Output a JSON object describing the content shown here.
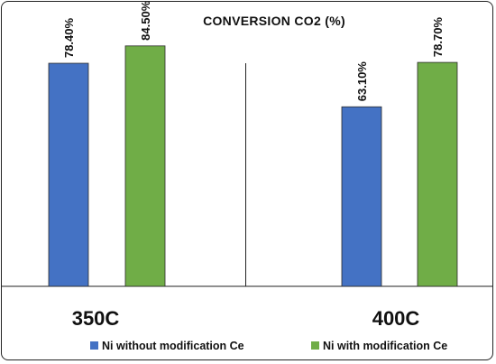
{
  "chart_data": {
    "type": "bar",
    "title": "CONVERSION  CO2 (%)",
    "categories": [
      "350C",
      "400C"
    ],
    "series": [
      {
        "name": "Ni without modification Ce",
        "color": "#4472C4",
        "values": [
          78.4,
          63.1
        ],
        "labels": [
          "78.40%",
          "63.10%"
        ]
      },
      {
        "name": "Ni with modification Ce",
        "color": "#70AD47",
        "values": [
          84.5,
          78.7
        ],
        "labels": [
          "84.50%",
          "78.70%"
        ]
      }
    ],
    "ylim": [
      0,
      100
    ],
    "xlabel": "",
    "ylabel": "",
    "grid": false,
    "legend": "bottom"
  }
}
